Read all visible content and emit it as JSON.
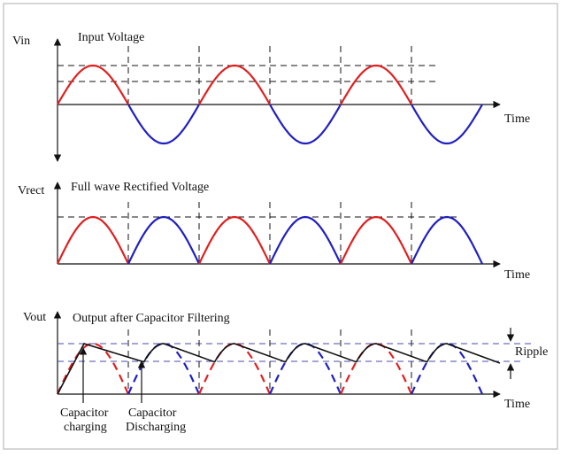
{
  "panels": {
    "input": {
      "axis_label": "Vin",
      "title": "Input Voltage",
      "time_label": "Time"
    },
    "rectified": {
      "axis_label": "Vrect",
      "title": "Full wave Rectified Voltage",
      "time_label": "Time"
    },
    "output": {
      "axis_label": "Vout",
      "title": "Output after Capacitor Filtering",
      "time_label": "Time",
      "ripple_label": "Ripple"
    }
  },
  "annotations": {
    "charging_line1": "Capacitor",
    "charging_line2": "charging",
    "discharging_line1": "Capacitor",
    "discharging_line2": "Discharging"
  },
  "colors": {
    "positive_half": "#e02020",
    "negative_half": "#2020c0",
    "frame": "#c8c8c8"
  },
  "half_cycles": 6
}
